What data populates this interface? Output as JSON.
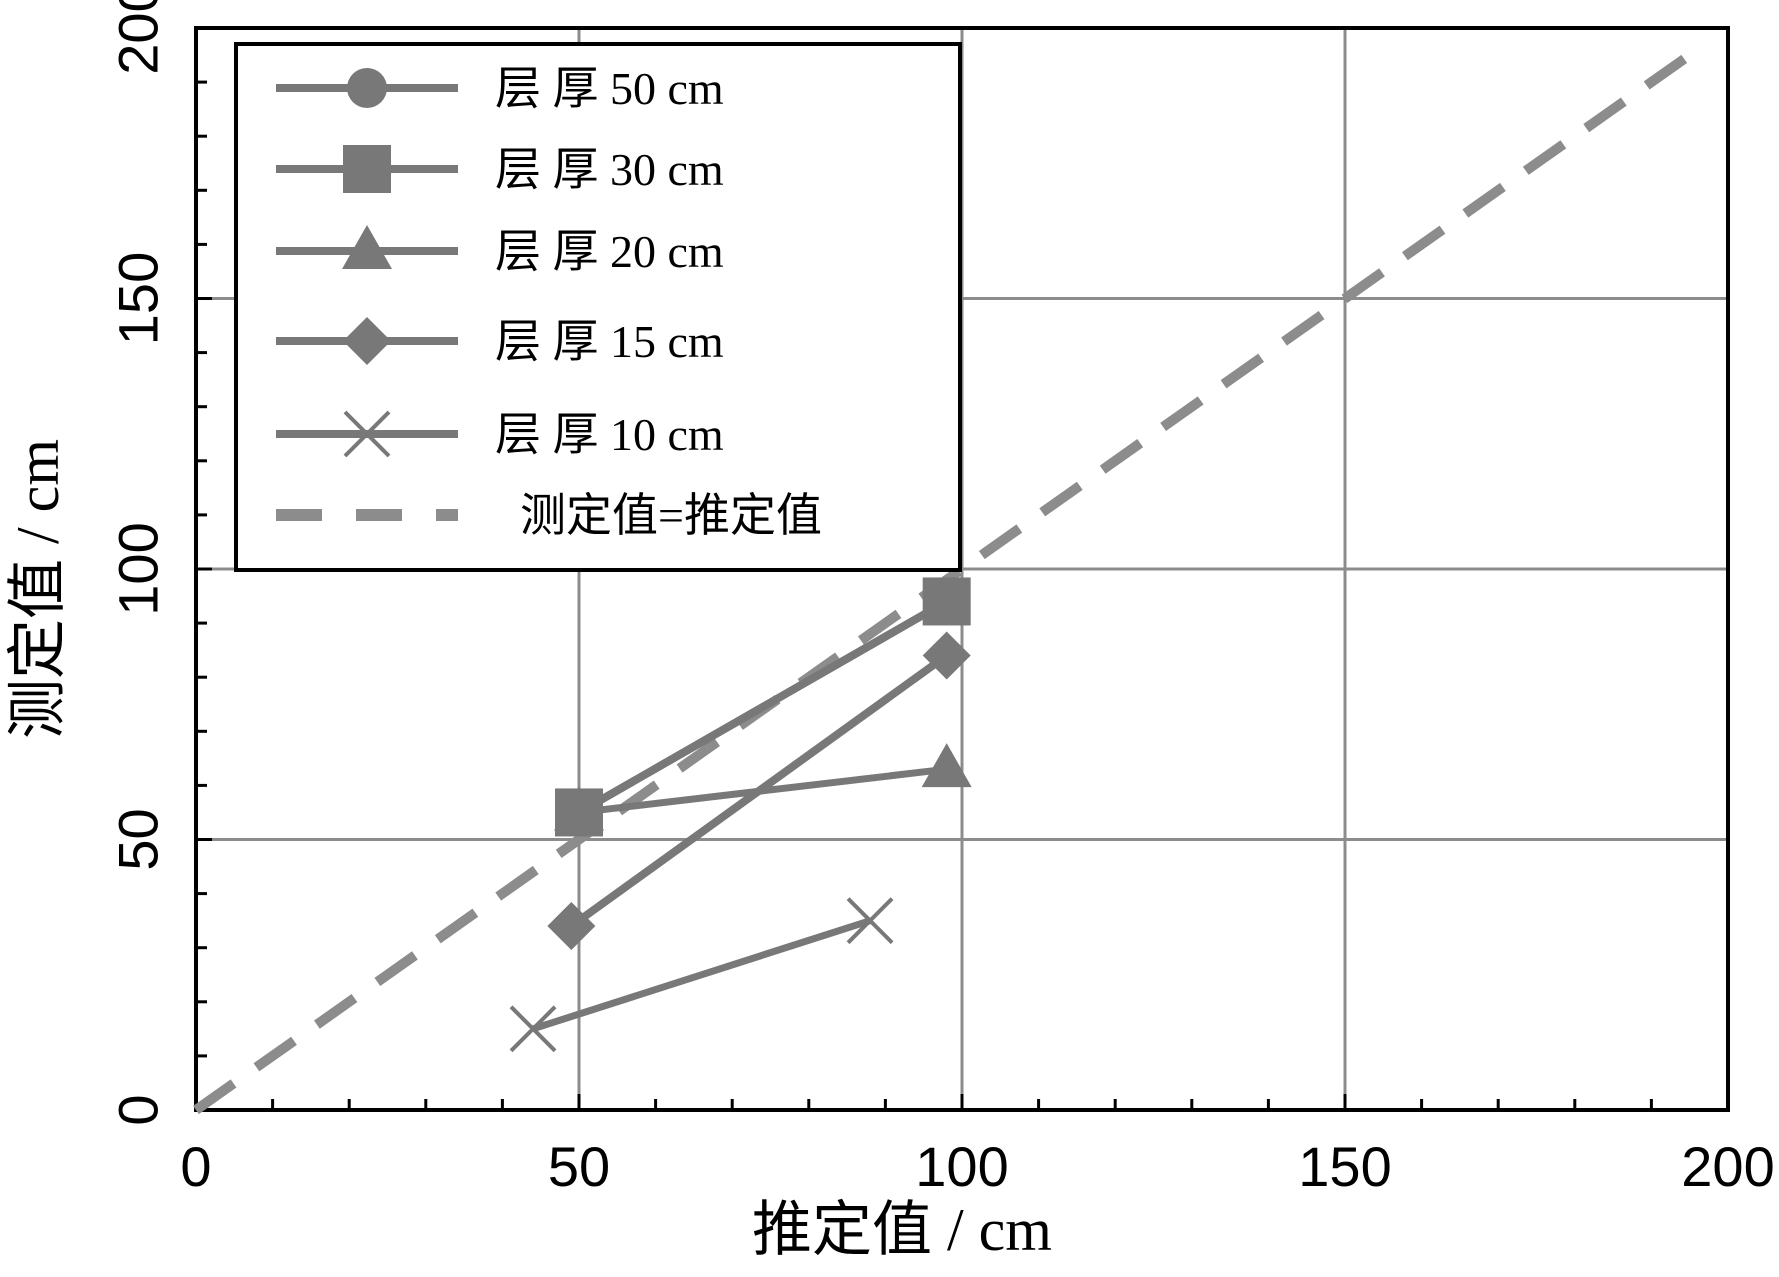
{
  "chart_data": {
    "type": "line",
    "xlabel": "推定值 / cm",
    "ylabel": "测定值 / cm",
    "xlim": [
      0,
      200
    ],
    "ylim": [
      0,
      200
    ],
    "xticks": [
      "0",
      "50",
      "100",
      "150",
      "200"
    ],
    "yticks": [
      "0",
      "50",
      "100",
      "150",
      "200"
    ],
    "grid": true,
    "legend_position": "top-left",
    "series": [
      {
        "name": "层 厚  50 cm",
        "marker": "circle",
        "x": [
          50,
          98
        ],
        "y": [
          55,
          94
        ]
      },
      {
        "name": "层 厚  30 cm",
        "marker": "square",
        "x": [
          50,
          98
        ],
        "y": [
          55,
          94
        ]
      },
      {
        "name": "层 厚  20 cm",
        "marker": "triangle",
        "x": [
          50,
          98
        ],
        "y": [
          55,
          63
        ]
      },
      {
        "name": "层 厚  15 cm",
        "marker": "diamond",
        "x": [
          49,
          98
        ],
        "y": [
          34,
          84
        ]
      },
      {
        "name": "层 厚  10 cm",
        "marker": "x",
        "x": [
          44,
          88
        ],
        "y": [
          15,
          35
        ]
      },
      {
        "name": "测定值=推定值",
        "marker": "none",
        "dashed": true,
        "x": [
          0,
          197
        ],
        "y": [
          0,
          197
        ]
      }
    ],
    "colors": {
      "series": "#787878",
      "dashed": "#8c8c8c",
      "grid": "#8c8c8c",
      "axis": "#000000"
    }
  }
}
